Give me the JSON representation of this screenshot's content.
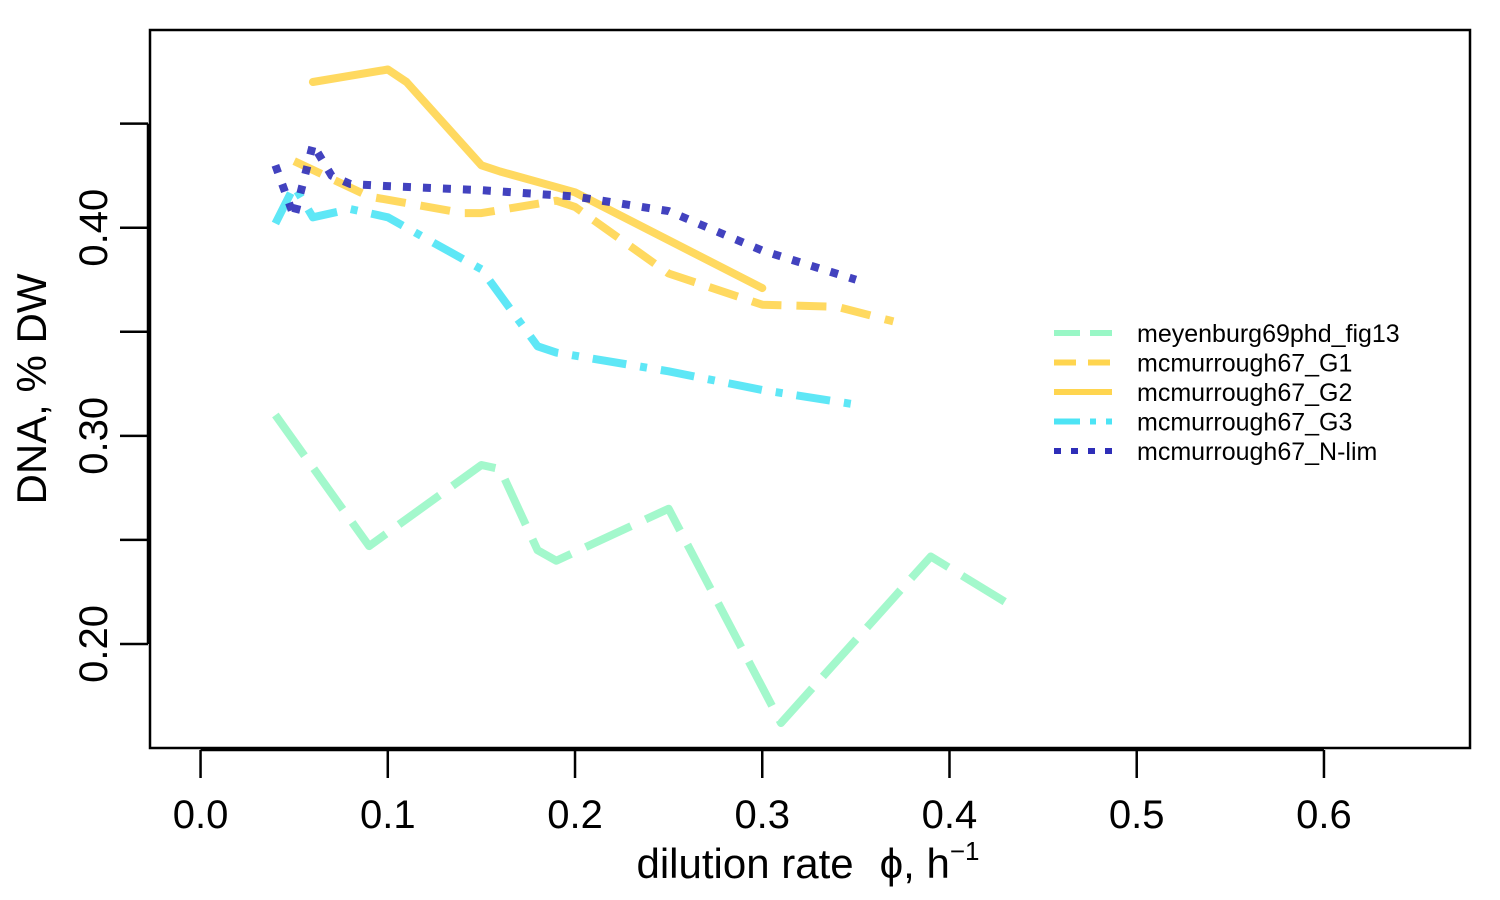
{
  "chart_data": {
    "type": "line",
    "title": "",
    "xlabel": "dilution rate",
    "xlabel_symbol": "ϕ",
    "xlabel_unit": ", h",
    "xlabel_unit_exp": "−1",
    "ylabel": "DNA, % DW",
    "xlim": [
      -0.027,
      0.678
    ],
    "ylim": [
      0.15,
      0.495
    ],
    "x_ticks": [
      0.0,
      0.1,
      0.2,
      0.3,
      0.4,
      0.5,
      0.6
    ],
    "x_tick_labels": [
      "0.0",
      "0.1",
      "0.2",
      "0.3",
      "0.4",
      "0.5",
      "0.6"
    ],
    "y_ticks": [
      0.2,
      0.25,
      0.3,
      0.35,
      0.4,
      0.45
    ],
    "y_tick_labels": [
      "0.20",
      "",
      "0.30",
      "",
      "0.40",
      ""
    ],
    "grid": false,
    "legend_position": "right",
    "series": [
      {
        "name": "meyenburg69phd_fig13",
        "color": "#99f7c6",
        "dash": "long-dash",
        "x": [
          0.04,
          0.09,
          0.15,
          0.16,
          0.18,
          0.19,
          0.25,
          0.31,
          0.39,
          0.43
        ],
        "y": [
          0.31,
          0.247,
          0.286,
          0.284,
          0.245,
          0.24,
          0.265,
          0.162,
          0.242,
          0.22
        ]
      },
      {
        "name": "mcmurrough67_G1",
        "color": "#ffd54f",
        "dash": "dash",
        "x": [
          0.05,
          0.09,
          0.14,
          0.15,
          0.19,
          0.2,
          0.25,
          0.3,
          0.34,
          0.37
        ],
        "y": [
          0.432,
          0.415,
          0.407,
          0.407,
          0.413,
          0.41,
          0.378,
          0.363,
          0.362,
          0.355
        ]
      },
      {
        "name": "mcmurrough67_G2",
        "color": "#ffd54f",
        "dash": "solid",
        "x": [
          0.06,
          0.1,
          0.11,
          0.15,
          0.16,
          0.2,
          0.25,
          0.3
        ],
        "y": [
          0.47,
          0.476,
          0.47,
          0.43,
          0.427,
          0.417,
          0.394,
          0.371
        ]
      },
      {
        "name": "mcmurrough67_G3",
        "color": "#4de4f5",
        "dash": "dot-dash",
        "x": [
          0.04,
          0.05,
          0.06,
          0.08,
          0.1,
          0.15,
          0.18,
          0.19,
          0.25,
          0.3,
          0.35
        ],
        "y": [
          0.402,
          0.42,
          0.405,
          0.409,
          0.405,
          0.38,
          0.343,
          0.34,
          0.331,
          0.322,
          0.315
        ]
      },
      {
        "name": "mcmurrough67_N-lim",
        "color": "#2e2eb8",
        "dash": "dot",
        "x": [
          0.04,
          0.05,
          0.06,
          0.07,
          0.08,
          0.1,
          0.15,
          0.2,
          0.25,
          0.3,
          0.35
        ],
        "y": [
          0.43,
          0.405,
          0.44,
          0.425,
          0.421,
          0.42,
          0.418,
          0.415,
          0.408,
          0.389,
          0.375
        ]
      }
    ]
  }
}
